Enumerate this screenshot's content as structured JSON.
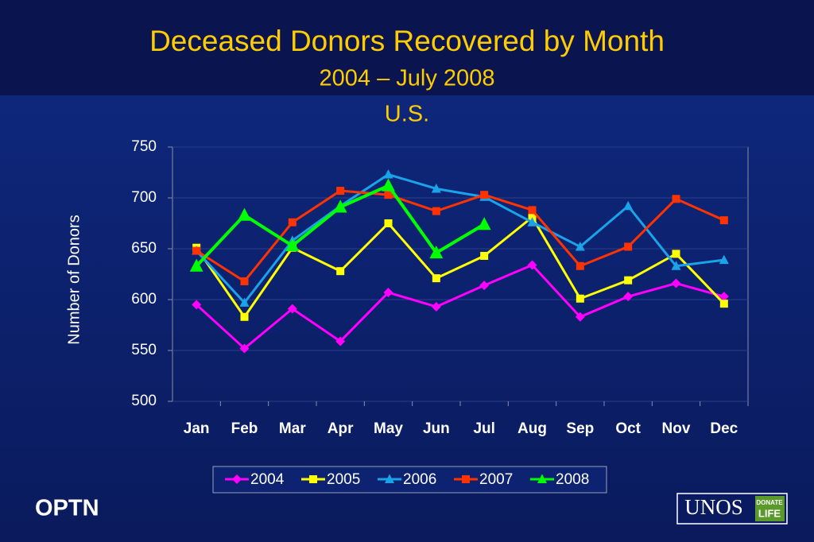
{
  "chart_data": {
    "type": "line",
    "title": "Deceased Donors Recovered by Month",
    "subtitle": [
      "2004 – July 2008",
      "U.S."
    ],
    "y_label": "Number of Donors",
    "categories": [
      "Jan",
      "Feb",
      "Mar",
      "Apr",
      "May",
      "Jun",
      "Jul",
      "Aug",
      "Sep",
      "Oct",
      "Nov",
      "Dec"
    ],
    "series": [
      {
        "name": "2004",
        "color": "#ff00ff",
        "marker": "diamond",
        "values": [
          595,
          552,
          591,
          559,
          607,
          593,
          614,
          634,
          583,
          603,
          616,
          603
        ]
      },
      {
        "name": "2005",
        "color": "#ffff00",
        "marker": "square",
        "values": [
          651,
          583,
          651,
          628,
          675,
          621,
          643,
          681,
          601,
          619,
          645,
          596
        ]
      },
      {
        "name": "2006",
        "color": "#1aa3e8",
        "marker": "triangle",
        "values": [
          648,
          597,
          658,
          692,
          723,
          709,
          701,
          676,
          652,
          692,
          633,
          639
        ]
      },
      {
        "name": "2007",
        "color": "#ff3300",
        "marker": "square",
        "values": [
          648,
          618,
          676,
          707,
          703,
          687,
          703,
          688,
          633,
          652,
          699,
          678
        ]
      },
      {
        "name": "2008",
        "color": "#00ff00",
        "marker": "triangle",
        "values": [
          633,
          683,
          653,
          691,
          712,
          646,
          674,
          null,
          null,
          null,
          null,
          null
        ]
      }
    ],
    "ylim": [
      500,
      750
    ],
    "yticks": [
      500,
      550,
      600,
      650,
      700,
      750
    ],
    "grid": true
  },
  "footer": {
    "left": "OPTN",
    "logo": "UNOS",
    "badge": [
      "DONATE",
      "LIFE"
    ]
  }
}
